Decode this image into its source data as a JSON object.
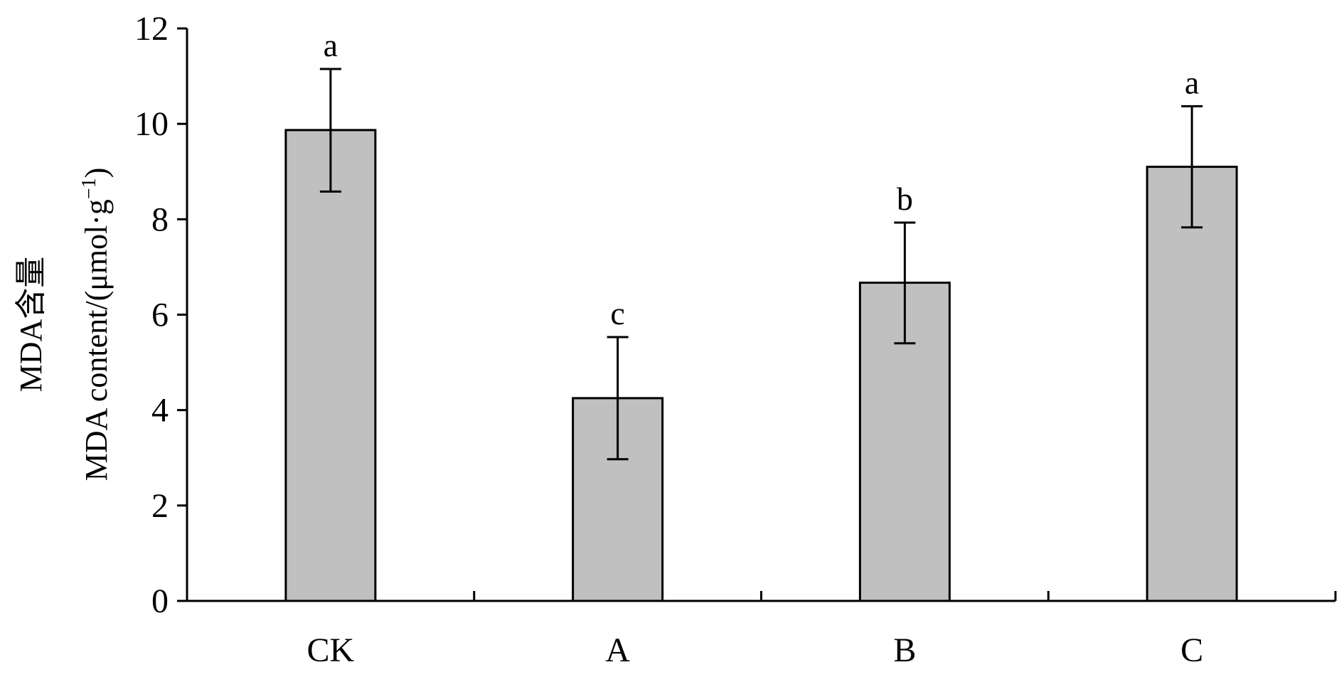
{
  "chart_data": {
    "type": "bar",
    "categories": [
      "CK",
      "A",
      "B",
      "C"
    ],
    "values": [
      9.87,
      4.25,
      6.67,
      9.1
    ],
    "error_upper": [
      11.15,
      5.53,
      7.93,
      10.37
    ],
    "error_lower": [
      8.58,
      2.97,
      5.4,
      7.83
    ],
    "significance_labels": [
      "a",
      "c",
      "b",
      "a"
    ],
    "ylabel_line1": "MDA含量",
    "ylabel_line2": "MDA content/(μmol·g",
    "ylabel_sup": "−1",
    "ylabel_close": ")",
    "ylim": [
      0,
      12
    ],
    "yticks": [
      "0",
      "2",
      "4",
      "6",
      "8",
      "10",
      "12"
    ],
    "grid": false,
    "legend": "none",
    "colors": {
      "bar_fill": "#c0c0c0",
      "bar_stroke": "#000000",
      "axis": "#000000"
    }
  }
}
